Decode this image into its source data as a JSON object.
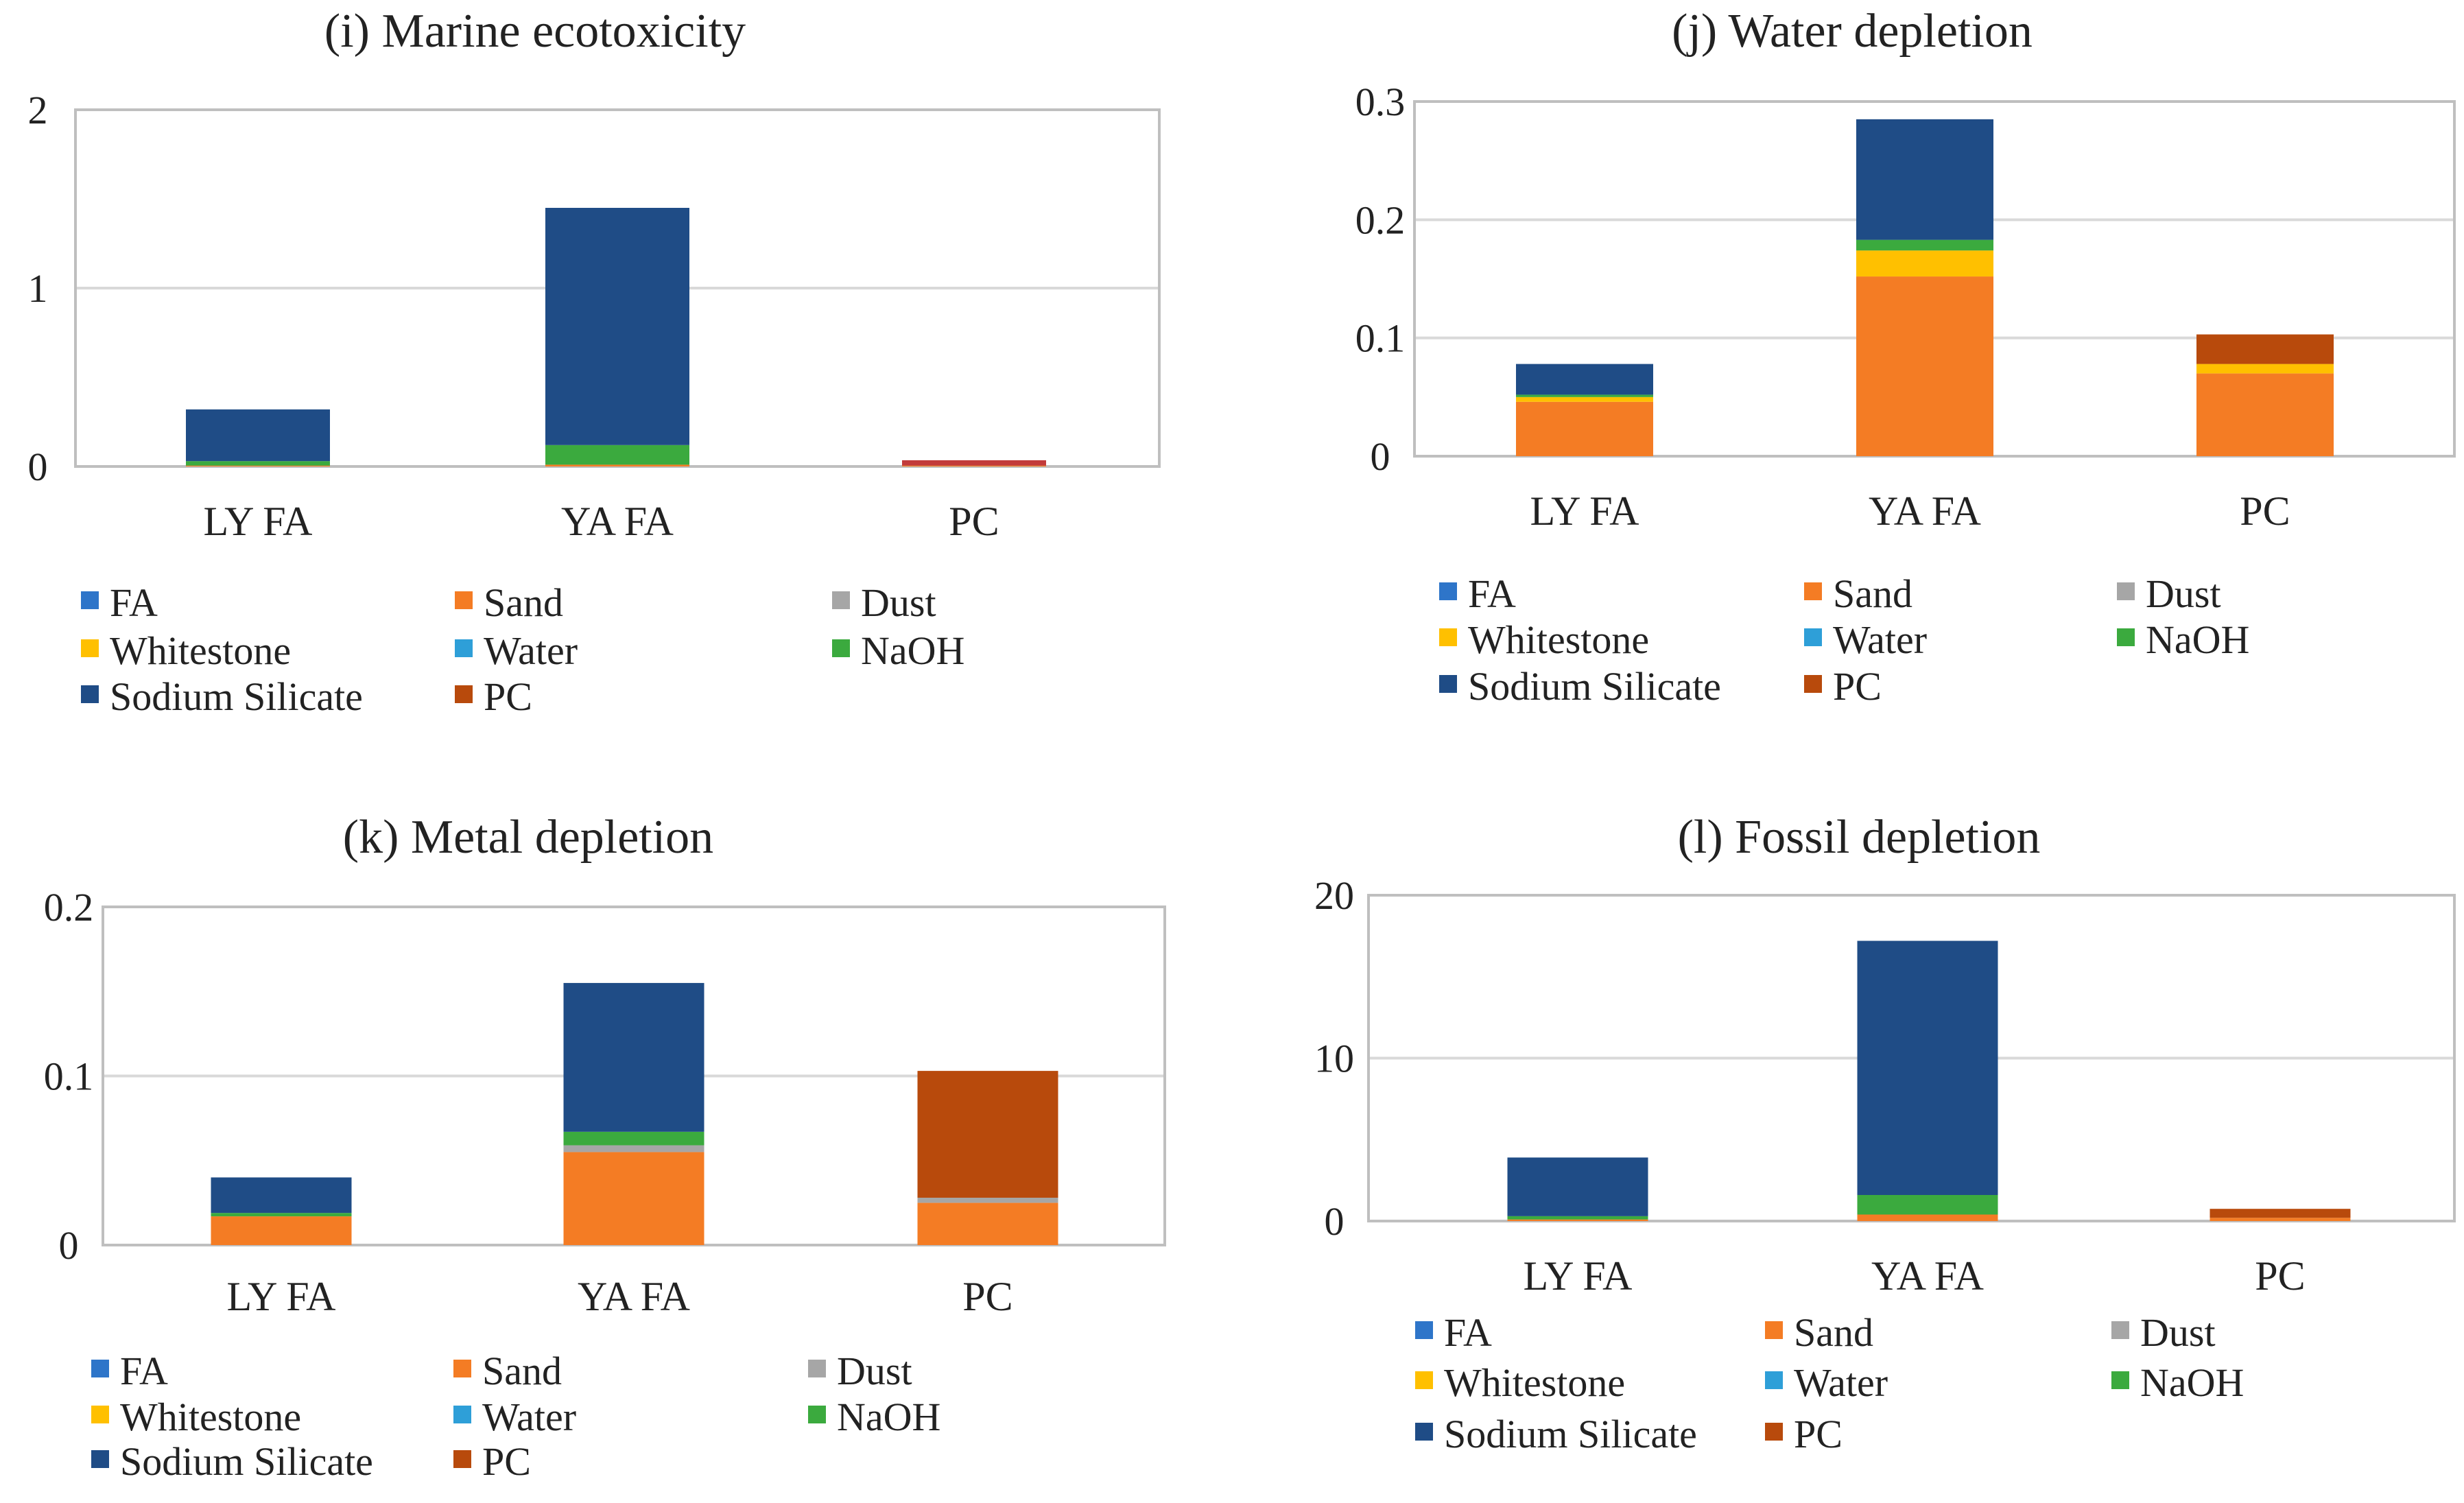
{
  "colors": {
    "FA": "#2E75C9",
    "Sand": "#F47C24",
    "Dust": "#A6A6A6",
    "Whitestone": "#FFC000",
    "Water": "#2E9FD8",
    "NaOH": "#3BAA3E",
    "Sodium Silicate": "#1F4C86",
    "PC": "#B84A0C",
    "PC_marine": "#C23B3B"
  },
  "chart_data": [
    {
      "type": "bar",
      "stacked": true,
      "title": "(i) Marine ecotoxicity",
      "categories": [
        "LY FA",
        "YA FA",
        "PC"
      ],
      "ylim": [
        0,
        2
      ],
      "yticks": [
        "0",
        "1",
        "2"
      ],
      "grid": true,
      "legend": [
        "FA",
        "Sand",
        "Dust",
        "Whitestone",
        "Water",
        "NaOH",
        "Sodium Silicate",
        "PC"
      ],
      "series": [
        {
          "name": "FA",
          "values": [
            0,
            0,
            0
          ]
        },
        {
          "name": "Sand",
          "values": [
            0.005,
            0.01,
            0.005
          ]
        },
        {
          "name": "Dust",
          "values": [
            0,
            0,
            0
          ]
        },
        {
          "name": "Whitestone",
          "values": [
            0,
            0,
            0
          ]
        },
        {
          "name": "Water",
          "values": [
            0,
            0,
            0
          ]
        },
        {
          "name": "NaOH",
          "values": [
            0.025,
            0.11,
            0
          ]
        },
        {
          "name": "Sodium Silicate",
          "values": [
            0.29,
            1.33,
            0
          ]
        },
        {
          "name": "PC",
          "values": [
            0,
            0,
            0.03
          ]
        }
      ]
    },
    {
      "type": "bar",
      "stacked": true,
      "title": "(j) Water depletion",
      "categories": [
        "LY FA",
        "YA FA",
        "PC"
      ],
      "ylim": [
        0,
        0.3
      ],
      "yticks": [
        "0",
        "0.1",
        "0.2",
        "0.3"
      ],
      "grid": true,
      "legend": [
        "FA",
        "Sand",
        "Dust",
        "Whitestone",
        "Water",
        "NaOH",
        "Sodium Silicate",
        "PC"
      ],
      "series": [
        {
          "name": "FA",
          "values": [
            0,
            0,
            0
          ]
        },
        {
          "name": "Sand",
          "values": [
            0.046,
            0.152,
            0.07
          ]
        },
        {
          "name": "Dust",
          "values": [
            0,
            0,
            0
          ]
        },
        {
          "name": "Whitestone",
          "values": [
            0.004,
            0.022,
            0.008
          ]
        },
        {
          "name": "Water",
          "values": [
            0,
            0,
            0
          ]
        },
        {
          "name": "NaOH",
          "values": [
            0.002,
            0.009,
            0
          ]
        },
        {
          "name": "Sodium Silicate",
          "values": [
            0.026,
            0.102,
            0
          ]
        },
        {
          "name": "PC",
          "values": [
            0,
            0,
            0.025
          ]
        }
      ]
    },
    {
      "type": "bar",
      "stacked": true,
      "title": "(k) Metal depletion",
      "categories": [
        "LY FA",
        "YA FA",
        "PC"
      ],
      "ylim": [
        0,
        0.2
      ],
      "yticks": [
        "0",
        "0.1",
        "0.2"
      ],
      "grid": true,
      "legend": [
        "FA",
        "Sand",
        "Dust",
        "Whitestone",
        "Water",
        "NaOH",
        "Sodium Silicate",
        "PC"
      ],
      "series": [
        {
          "name": "FA",
          "values": [
            0,
            0,
            0
          ]
        },
        {
          "name": "Sand",
          "values": [
            0.017,
            0.055,
            0.025
          ]
        },
        {
          "name": "Dust",
          "values": [
            0,
            0.004,
            0.003
          ]
        },
        {
          "name": "Whitestone",
          "values": [
            0,
            0,
            0
          ]
        },
        {
          "name": "Water",
          "values": [
            0,
            0,
            0
          ]
        },
        {
          "name": "NaOH",
          "values": [
            0.002,
            0.008,
            0
          ]
        },
        {
          "name": "Sodium Silicate",
          "values": [
            0.021,
            0.088,
            0
          ]
        },
        {
          "name": "PC",
          "values": [
            0,
            0,
            0.075
          ]
        }
      ]
    },
    {
      "type": "bar",
      "stacked": true,
      "title": "(l) Fossil depletion",
      "categories": [
        "LY FA",
        "YA FA",
        "PC"
      ],
      "ylim": [
        0,
        20
      ],
      "yticks": [
        "0",
        "10",
        "20"
      ],
      "grid": true,
      "legend": [
        "FA",
        "Sand",
        "Dust",
        "Whitestone",
        "Water",
        "NaOH",
        "Sodium Silicate",
        "PC"
      ],
      "series": [
        {
          "name": "FA",
          "values": [
            0,
            0,
            0
          ]
        },
        {
          "name": "Sand",
          "values": [
            0.1,
            0.4,
            0.2
          ]
        },
        {
          "name": "Dust",
          "values": [
            0,
            0,
            0
          ]
        },
        {
          "name": "Whitestone",
          "values": [
            0,
            0,
            0
          ]
        },
        {
          "name": "Water",
          "values": [
            0,
            0,
            0
          ]
        },
        {
          "name": "NaOH",
          "values": [
            0.2,
            1.2,
            0
          ]
        },
        {
          "name": "Sodium Silicate",
          "values": [
            3.6,
            15.6,
            0
          ]
        },
        {
          "name": "PC",
          "values": [
            0,
            0,
            0.55
          ]
        }
      ]
    }
  ]
}
